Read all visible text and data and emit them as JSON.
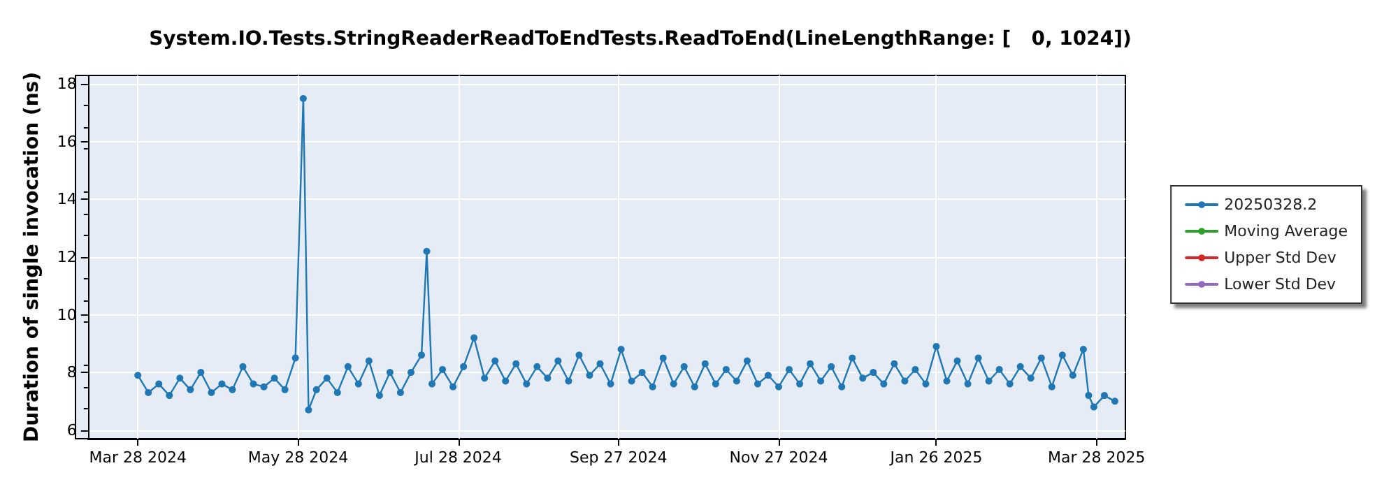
{
  "chart_data": {
    "type": "line",
    "title": "System.IO.Tests.StringReaderReadToEndTests.ReadToEnd(LineLengthRange: [   0, 1024])",
    "ylabel": "Duration of single invocation (ns)",
    "xlim": [
      "2024-03-09",
      "2025-04-08"
    ],
    "ylim": [
      5.7,
      18.3
    ],
    "yticks": [
      6,
      8,
      10,
      12,
      14,
      16,
      18
    ],
    "xticks": [
      {
        "value": "2024-03-28",
        "label": "Mar 28 2024"
      },
      {
        "value": "2024-05-28",
        "label": "May 28 2024"
      },
      {
        "value": "2024-07-28",
        "label": "Jul 28 2024"
      },
      {
        "value": "2024-09-27",
        "label": "Sep 27 2024"
      },
      {
        "value": "2024-11-27",
        "label": "Nov 27 2024"
      },
      {
        "value": "2025-01-26",
        "label": "Jan 26 2025"
      },
      {
        "value": "2025-03-28",
        "label": "Mar 28 2025"
      }
    ],
    "grid": true,
    "legend": "right",
    "marker": "circle",
    "line_style": "solid",
    "series": [
      {
        "name": "20250328.2",
        "color": "#1f77b4",
        "x": [
          "2024-03-28",
          "2024-04-01",
          "2024-04-05",
          "2024-04-09",
          "2024-04-13",
          "2024-04-17",
          "2024-04-21",
          "2024-04-25",
          "2024-04-29",
          "2024-05-03",
          "2024-05-07",
          "2024-05-11",
          "2024-05-15",
          "2024-05-19",
          "2024-05-23",
          "2024-05-27",
          "2024-05-30",
          "2024-06-01",
          "2024-06-04",
          "2024-06-08",
          "2024-06-12",
          "2024-06-16",
          "2024-06-20",
          "2024-06-24",
          "2024-06-28",
          "2024-07-02",
          "2024-07-06",
          "2024-07-10",
          "2024-07-14",
          "2024-07-16",
          "2024-07-18",
          "2024-07-22",
          "2024-07-26",
          "2024-07-30",
          "2024-08-03",
          "2024-08-07",
          "2024-08-11",
          "2024-08-15",
          "2024-08-19",
          "2024-08-23",
          "2024-08-27",
          "2024-08-31",
          "2024-09-04",
          "2024-09-08",
          "2024-09-12",
          "2024-09-16",
          "2024-09-20",
          "2024-09-24",
          "2024-09-28",
          "2024-10-02",
          "2024-10-06",
          "2024-10-10",
          "2024-10-14",
          "2024-10-18",
          "2024-10-22",
          "2024-10-26",
          "2024-10-30",
          "2024-11-03",
          "2024-11-07",
          "2024-11-11",
          "2024-11-15",
          "2024-11-19",
          "2024-11-23",
          "2024-11-27",
          "2024-12-01",
          "2024-12-05",
          "2024-12-09",
          "2024-12-13",
          "2024-12-17",
          "2024-12-21",
          "2024-12-25",
          "2024-12-29",
          "2025-01-02",
          "2025-01-06",
          "2025-01-10",
          "2025-01-14",
          "2025-01-18",
          "2025-01-22",
          "2025-01-26",
          "2025-01-30",
          "2025-02-03",
          "2025-02-07",
          "2025-02-11",
          "2025-02-15",
          "2025-02-19",
          "2025-02-23",
          "2025-02-27",
          "2025-03-03",
          "2025-03-07",
          "2025-03-11",
          "2025-03-15",
          "2025-03-19",
          "2025-03-23",
          "2025-03-25",
          "2025-03-27",
          "2025-03-31",
          "2025-04-04"
        ],
        "values": [
          7.9,
          7.3,
          7.6,
          7.2,
          7.8,
          7.4,
          8.0,
          7.3,
          7.6,
          7.4,
          8.2,
          7.6,
          7.5,
          7.8,
          7.4,
          8.5,
          17.5,
          6.7,
          7.4,
          7.8,
          7.3,
          8.2,
          7.6,
          8.4,
          7.2,
          8.0,
          7.3,
          8.0,
          8.6,
          12.2,
          7.6,
          8.1,
          7.5,
          8.2,
          9.2,
          7.8,
          8.4,
          7.7,
          8.3,
          7.6,
          8.2,
          7.8,
          8.4,
          7.7,
          8.6,
          7.9,
          8.3,
          7.6,
          8.8,
          7.7,
          8.0,
          7.5,
          8.5,
          7.6,
          8.2,
          7.5,
          8.3,
          7.6,
          8.1,
          7.7,
          8.4,
          7.6,
          7.9,
          7.5,
          8.1,
          7.6,
          8.3,
          7.7,
          8.2,
          7.5,
          8.5,
          7.8,
          8.0,
          7.6,
          8.3,
          7.7,
          8.1,
          7.6,
          8.9,
          7.7,
          8.4,
          7.6,
          8.5,
          7.7,
          8.1,
          7.6,
          8.2,
          7.8,
          8.5,
          7.5,
          8.6,
          7.9,
          8.8,
          7.2,
          6.8,
          7.2,
          7.0
        ]
      },
      {
        "name": "Moving Average",
        "color": "#2ca02c"
      },
      {
        "name": "Upper Std Dev",
        "color": "#d62728"
      },
      {
        "name": "Lower Std Dev",
        "color": "#9467bd"
      }
    ]
  }
}
